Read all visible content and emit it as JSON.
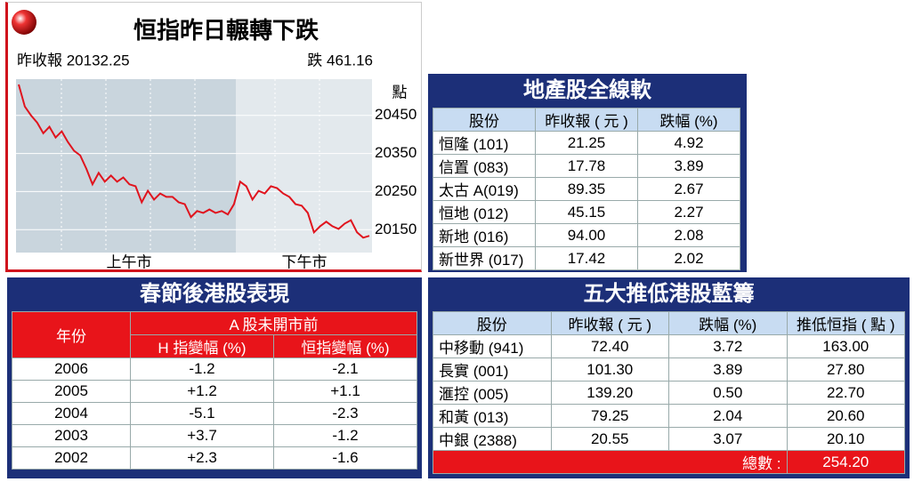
{
  "chart_data": {
    "type": "line",
    "title": "恒指昨日輾轉下跌",
    "prev_close_label": "昨收報 20132.25",
    "change_label": "跌 461.16",
    "y_unit": "點",
    "session_labels": [
      "上午市",
      "下午市"
    ],
    "color": "#e0141e",
    "values": [
      20531,
      20473,
      20450,
      20431,
      20403,
      20420,
      20392,
      20408,
      20380,
      20357,
      20345,
      20310,
      20269,
      20299,
      20276,
      20292,
      20276,
      20287,
      20269,
      20264,
      20222,
      20252,
      20229,
      20245,
      20236,
      20236,
      20222,
      20217,
      20183,
      20199,
      20194,
      20203,
      20194,
      20199,
      20190,
      20217,
      20276,
      20264,
      20229,
      20252,
      20245,
      20264,
      20259,
      20245,
      20236,
      20217,
      20213,
      20194,
      20143,
      20159,
      20171,
      20159,
      20152,
      20166,
      20175,
      20143,
      20129,
      20134
    ],
    "ylim": [
      20090,
      20545
    ],
    "yticks": [
      20150,
      20250,
      20350,
      20450
    ],
    "grid": true
  },
  "property_table": {
    "title": "地產股全線軟",
    "columns": [
      "股份",
      "昨收報 ( 元 )",
      "跌幅 (%)"
    ],
    "rows": [
      [
        "恒隆 (101)",
        "21.25",
        "4.92"
      ],
      [
        "信置 (083)",
        "17.78",
        "3.89"
      ],
      [
        "太古 A(019)",
        "89.35",
        "2.67"
      ],
      [
        "恒地 (012)",
        "45.15",
        "2.27"
      ],
      [
        "新地 (016)",
        "94.00",
        "2.08"
      ],
      [
        "新世界 (017)",
        "17.42",
        "2.02"
      ]
    ]
  },
  "cny_table": {
    "title": "春節後港股表現",
    "year_header": "年份",
    "group_header": "A 股未開市前",
    "sub_columns": [
      "H 指變幅 (%)",
      "恒指變幅 (%)"
    ],
    "rows": [
      [
        "2006",
        "-1.2",
        "-2.1"
      ],
      [
        "2005",
        "+1.2",
        "+1.1"
      ],
      [
        "2004",
        "-5.1",
        "-2.3"
      ],
      [
        "2003",
        "+3.7",
        "-1.2"
      ],
      [
        "2002",
        "+2.3",
        "-1.6"
      ]
    ]
  },
  "bluechip_table": {
    "title": "五大推低港股藍籌",
    "columns": [
      "股份",
      "昨收報 ( 元 )",
      "跌幅 (%)",
      "推低恒指 ( 點 )"
    ],
    "rows": [
      [
        "中移動 (941)",
        "72.40",
        "3.72",
        "163.00"
      ],
      [
        "長實 (001)",
        "101.30",
        "3.89",
        "27.80"
      ],
      [
        "滙控 (005)",
        "139.20",
        "0.50",
        "22.70"
      ],
      [
        "和黃 (013)",
        "79.25",
        "2.04",
        "20.60"
      ],
      [
        "中銀 (2388)",
        "20.55",
        "3.07",
        "20.10"
      ]
    ],
    "total_label": "總數 :",
    "total": "254.20"
  }
}
